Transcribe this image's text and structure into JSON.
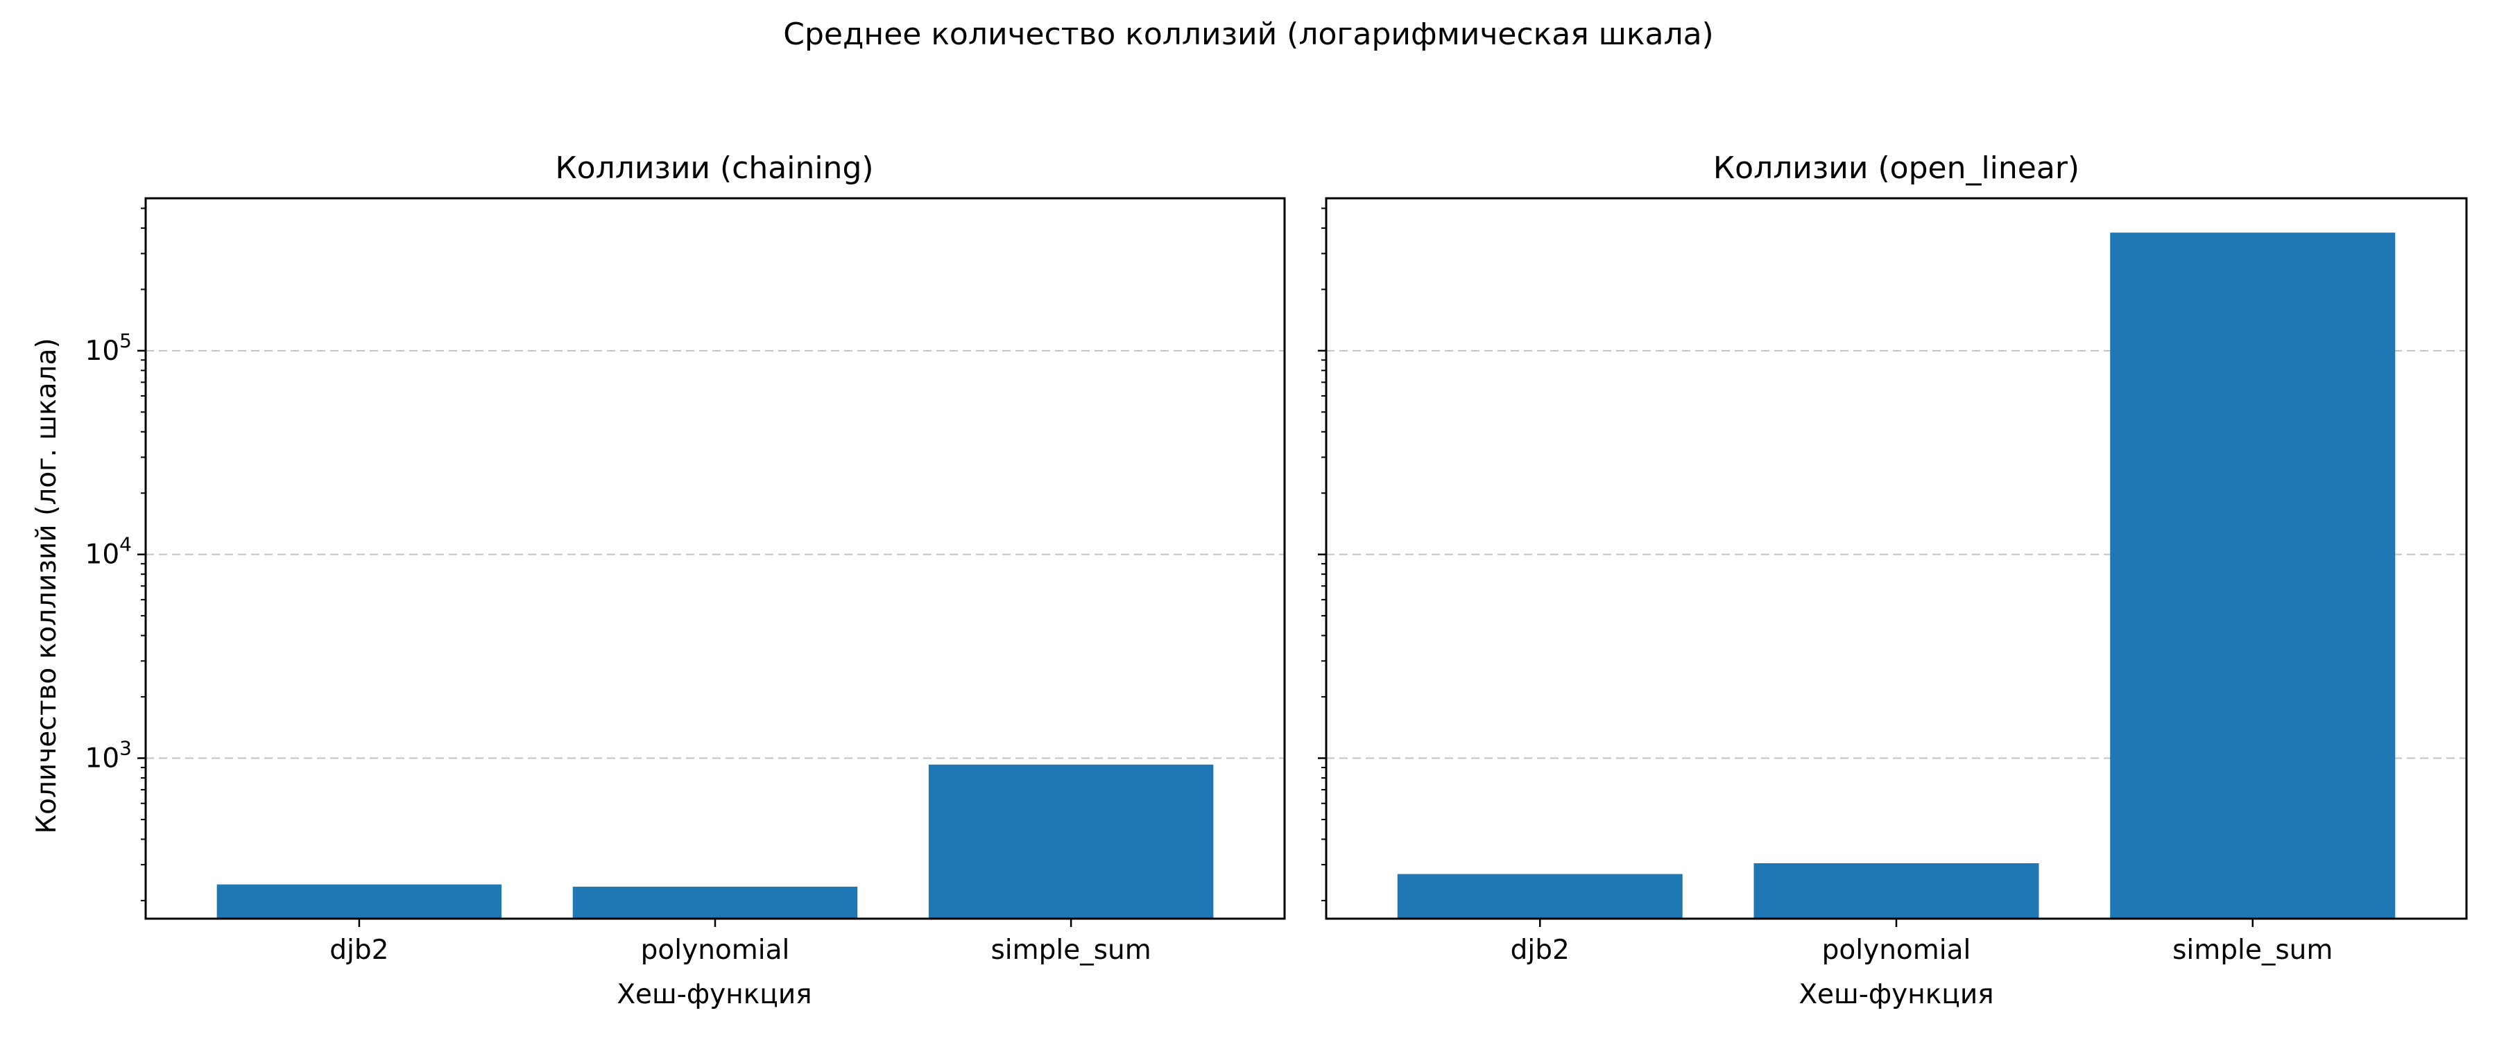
{
  "chart_data": {
    "title": "Среднее количество коллизий (логарифмическая шкала)",
    "colors": {
      "bar": "#1f77b4"
    },
    "type": "bar",
    "yscale": "log",
    "sharey": true,
    "ylim": [
      163,
      560000
    ],
    "yticks": [
      1000,
      10000,
      100000
    ],
    "ytick_labels": [
      {
        "base": "10",
        "exp": "3"
      },
      {
        "base": "10",
        "exp": "4"
      },
      {
        "base": "10",
        "exp": "5"
      }
    ],
    "grid": "y-major-dashed",
    "panels": [
      {
        "title": "Коллизии (chaining)",
        "xlabel": "Хеш-функция",
        "ylabel": "Количество коллизий (лог. шкала)",
        "categories": [
          "djb2",
          "polynomial",
          "simple_sum"
        ],
        "values": [
          240,
          234,
          930
        ]
      },
      {
        "title": "Коллизии (open_linear)",
        "xlabel": "Хеш-функция",
        "ylabel": "",
        "categories": [
          "djb2",
          "polynomial",
          "simple_sum"
        ],
        "values": [
          270,
          305,
          380000
        ]
      }
    ]
  }
}
